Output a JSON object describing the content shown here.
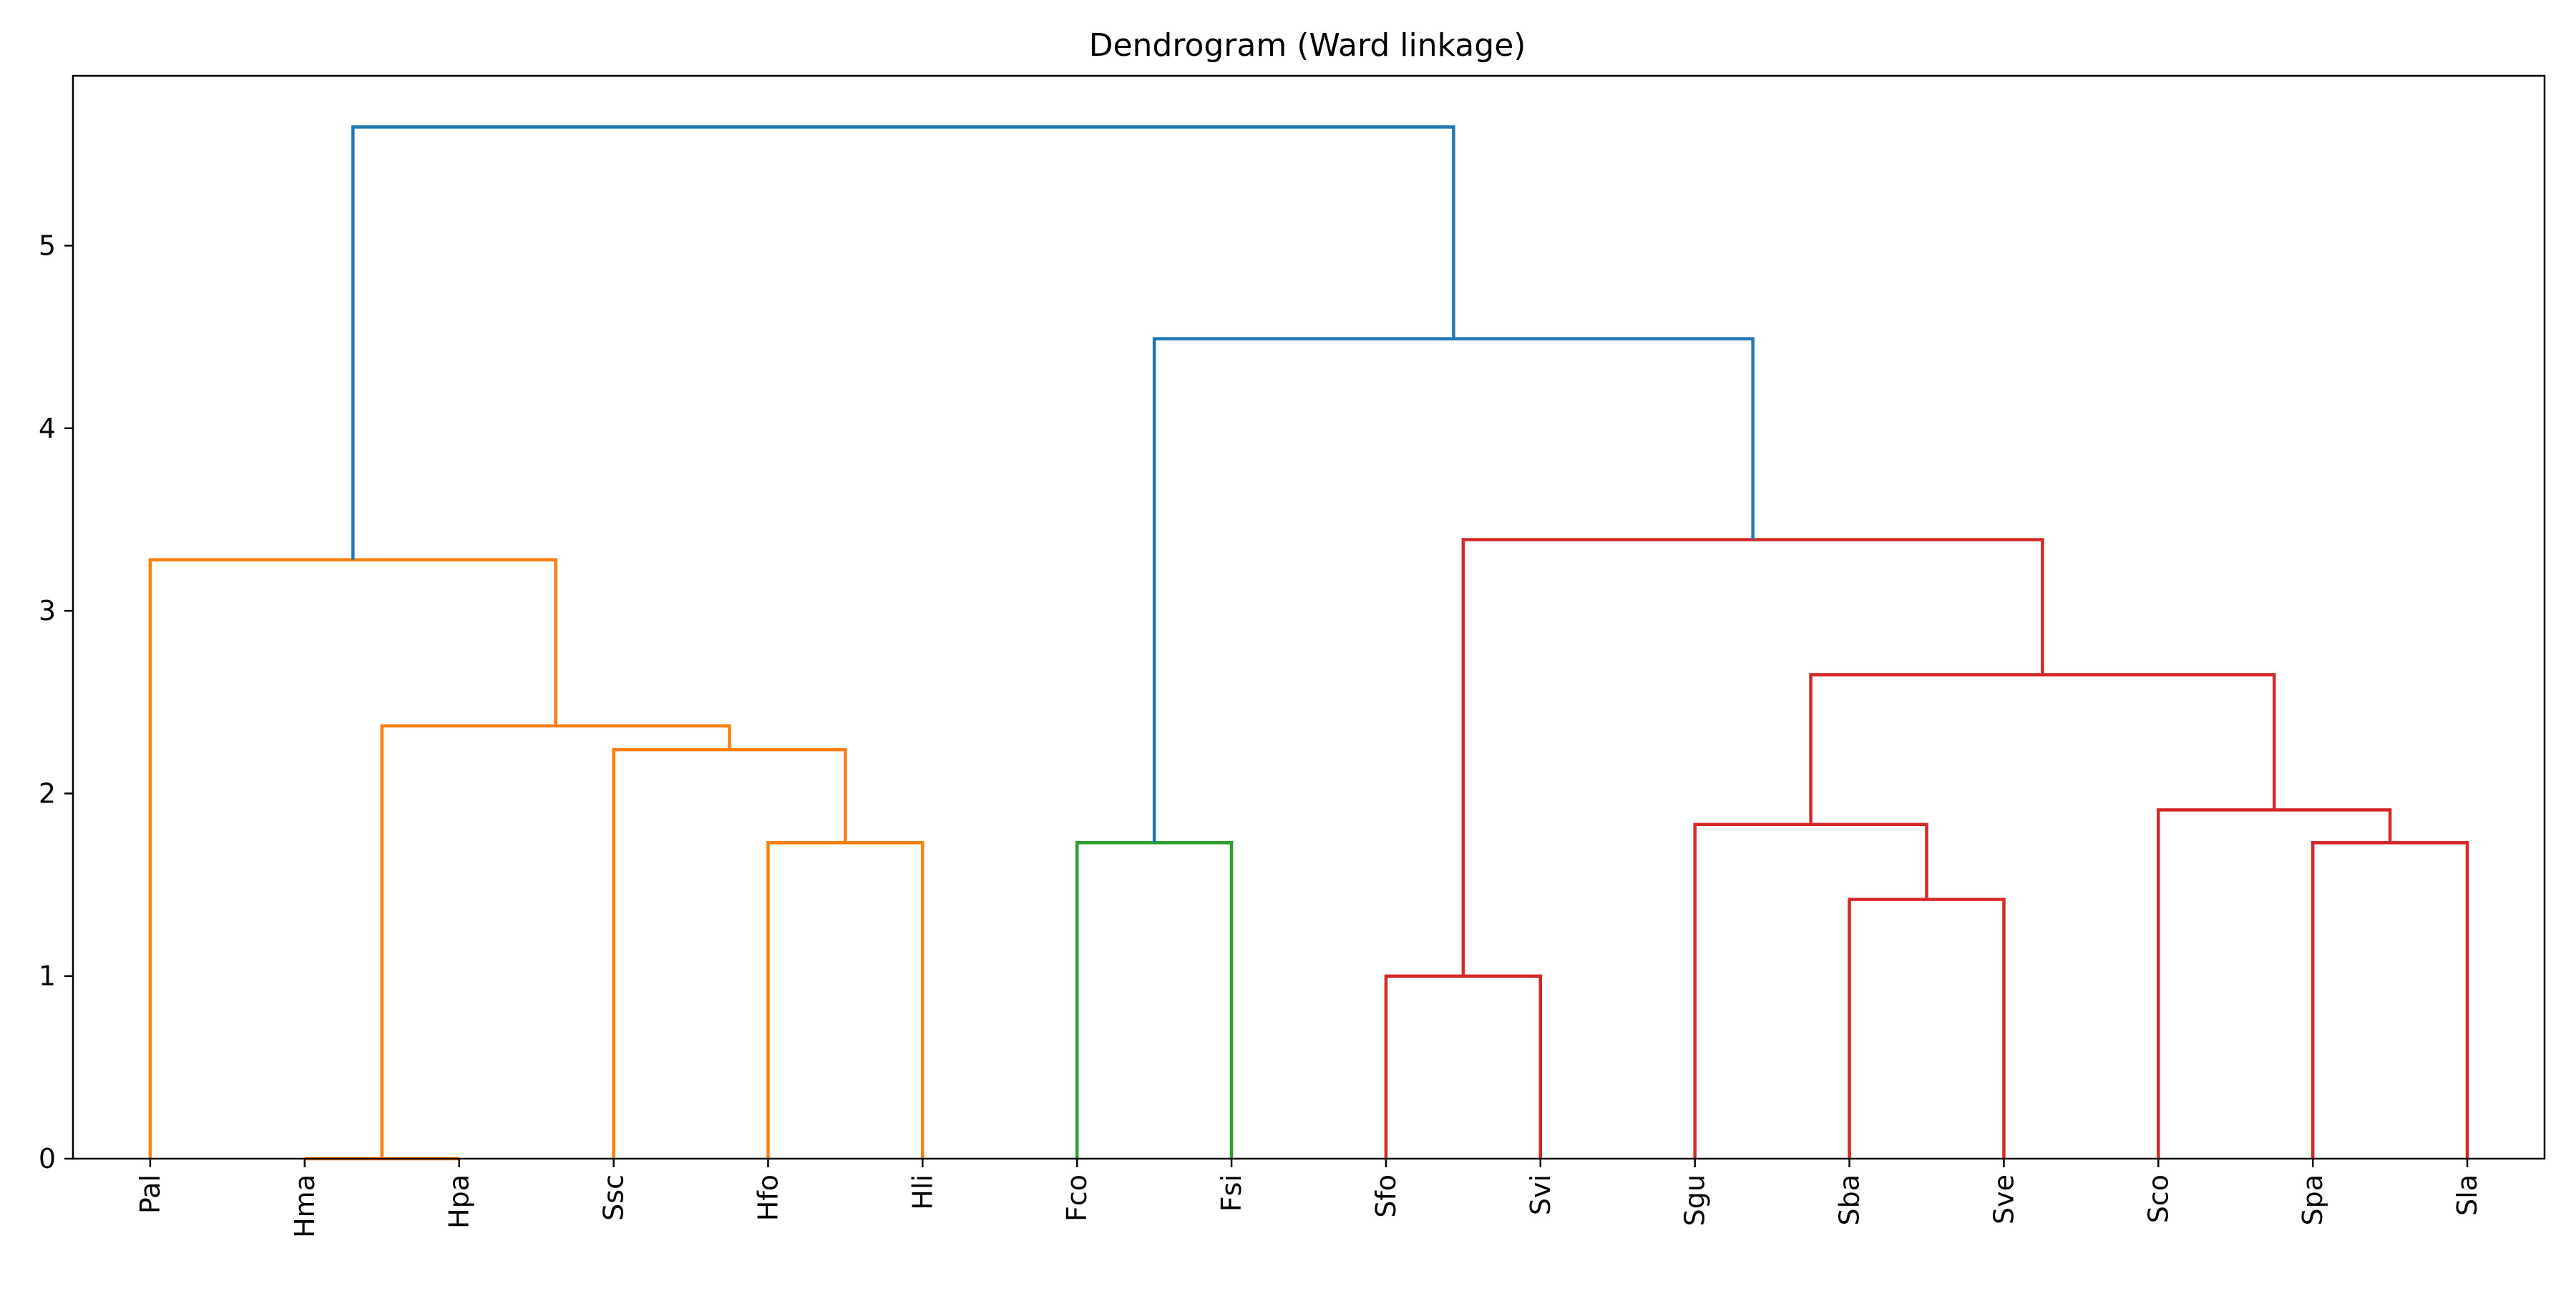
{
  "chart_data": {
    "type": "dendrogram",
    "title": "Dendrogram (Ward linkage)",
    "xlabel": "",
    "ylabel": "",
    "ylim": [
      0,
      5.93
    ],
    "yticks": [
      0,
      1,
      2,
      3,
      4,
      5
    ],
    "grid": false,
    "leaves": [
      "Pal",
      "Hma",
      "Hpa",
      "Ssc",
      "Hfo",
      "Hli",
      "Fco",
      "Fsi",
      "Sfo",
      "Svi",
      "Sgu",
      "Sba",
      "Sve",
      "Sco",
      "Spa",
      "Sla"
    ],
    "colors": {
      "above_threshold": "#1f77b4",
      "cluster_1": "#ff7f0e",
      "cluster_2": "#2ca02c",
      "cluster_3": "#d62728"
    },
    "links": [
      {
        "id": "m_hma_hpa",
        "left": "Hma",
        "right": "Hpa",
        "height": 0.0,
        "color": "#ff7f0e"
      },
      {
        "id": "m_hfo_hli",
        "left": "Hfo",
        "right": "Hli",
        "height": 1.73,
        "color": "#ff7f0e"
      },
      {
        "id": "m_ssc_h",
        "left": "Ssc",
        "right": "m_hfo_hli",
        "height": 2.24,
        "color": "#ff7f0e"
      },
      {
        "id": "m_hmp_ssch",
        "left": "m_hma_hpa",
        "right": "m_ssc_h",
        "height": 2.37,
        "color": "#ff7f0e"
      },
      {
        "id": "m_pal_rest",
        "left": "Pal",
        "right": "m_hmp_ssch",
        "height": 3.28,
        "color": "#ff7f0e"
      },
      {
        "id": "m_fco_fsi",
        "left": "Fco",
        "right": "Fsi",
        "height": 1.73,
        "color": "#2ca02c"
      },
      {
        "id": "m_sfo_svi",
        "left": "Sfo",
        "right": "Svi",
        "height": 1.0,
        "color": "#d62728"
      },
      {
        "id": "m_sba_sve",
        "left": "Sba",
        "right": "Sve",
        "height": 1.42,
        "color": "#d62728"
      },
      {
        "id": "m_sgu_sbv",
        "left": "Sgu",
        "right": "m_sba_sve",
        "height": 1.83,
        "color": "#d62728"
      },
      {
        "id": "m_spa_sla",
        "left": "Spa",
        "right": "Sla",
        "height": 1.73,
        "color": "#d62728"
      },
      {
        "id": "m_sco_spl",
        "left": "Sco",
        "right": "m_spa_sla",
        "height": 1.91,
        "color": "#d62728"
      },
      {
        "id": "m_s_mid",
        "left": "m_sgu_sbv",
        "right": "m_sco_spl",
        "height": 2.65,
        "color": "#d62728"
      },
      {
        "id": "m_s_all",
        "left": "m_sfo_svi",
        "right": "m_s_mid",
        "height": 3.39,
        "color": "#d62728"
      },
      {
        "id": "m_f_s",
        "left": "m_fco_fsi",
        "right": "m_s_all",
        "height": 4.49,
        "color": "#1f77b4"
      },
      {
        "id": "m_root",
        "left": "m_pal_rest",
        "right": "m_f_s",
        "height": 5.65,
        "color": "#1f77b4"
      }
    ]
  }
}
